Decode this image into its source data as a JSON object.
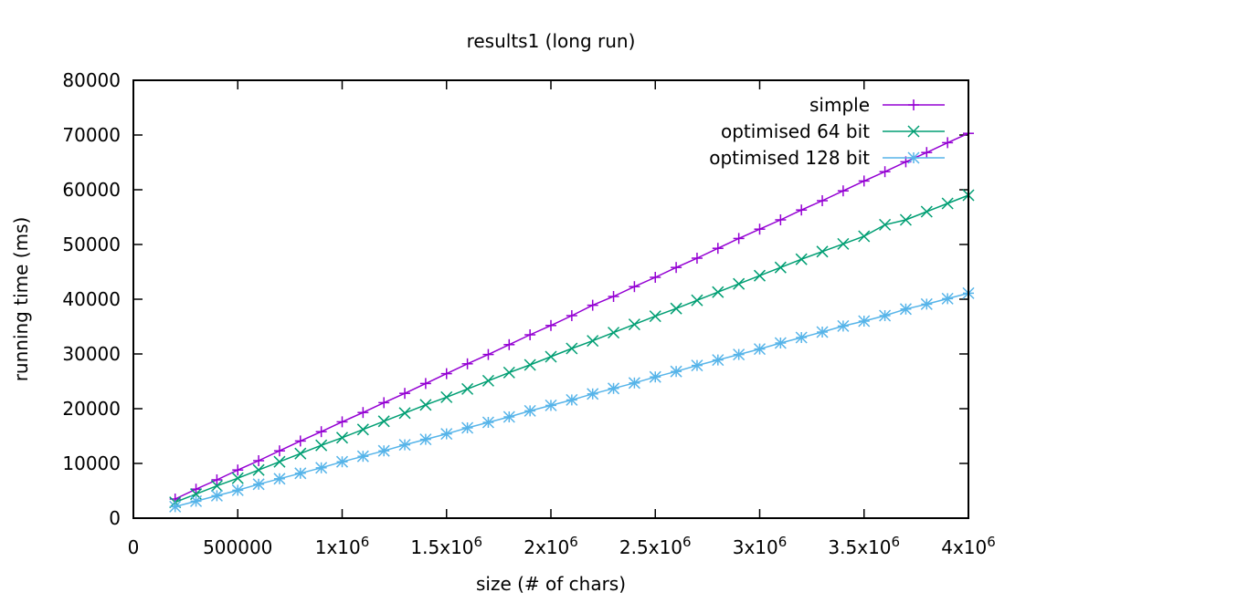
{
  "chart_data": {
    "type": "line",
    "title": "results1 (long run)",
    "xlabel": "size (# of chars)",
    "ylabel": "running time (ms)",
    "xlim": [
      0,
      4000000
    ],
    "ylim": [
      0,
      80000
    ],
    "grid": false,
    "legend_position": "top-right",
    "x_ticks": [
      {
        "value": 0,
        "label": "0"
      },
      {
        "value": 500000,
        "label": "500000"
      },
      {
        "value": 1000000,
        "label": "1x10",
        "exp": "6"
      },
      {
        "value": 1500000,
        "label": "1.5x10",
        "exp": "6"
      },
      {
        "value": 2000000,
        "label": "2x10",
        "exp": "6"
      },
      {
        "value": 2500000,
        "label": "2.5x10",
        "exp": "6"
      },
      {
        "value": 3000000,
        "label": "3x10",
        "exp": "6"
      },
      {
        "value": 3500000,
        "label": "3.5x10",
        "exp": "6"
      },
      {
        "value": 4000000,
        "label": "4x10",
        "exp": "6"
      }
    ],
    "y_ticks": [
      {
        "value": 0,
        "label": "0"
      },
      {
        "value": 10000,
        "label": "10000"
      },
      {
        "value": 20000,
        "label": "20000"
      },
      {
        "value": 30000,
        "label": "30000"
      },
      {
        "value": 40000,
        "label": "40000"
      },
      {
        "value": 50000,
        "label": "50000"
      },
      {
        "value": 60000,
        "label": "60000"
      },
      {
        "value": 70000,
        "label": "70000"
      },
      {
        "value": 80000,
        "label": "80000"
      }
    ],
    "x": [
      200000,
      300000,
      400000,
      500000,
      600000,
      700000,
      800000,
      900000,
      1000000,
      1100000,
      1200000,
      1300000,
      1400000,
      1500000,
      1600000,
      1700000,
      1800000,
      1900000,
      2000000,
      2100000,
      2200000,
      2300000,
      2400000,
      2500000,
      2600000,
      2700000,
      2800000,
      2900000,
      3000000,
      3100000,
      3200000,
      3300000,
      3400000,
      3500000,
      3600000,
      3700000,
      3800000,
      3900000,
      4000000
    ],
    "series": [
      {
        "name": "simple",
        "color": "#9400d3",
        "marker": "plus",
        "values": [
          3500,
          5300,
          7000,
          8800,
          10500,
          12300,
          14100,
          15800,
          17600,
          19300,
          21100,
          22800,
          24600,
          26400,
          28200,
          29900,
          31700,
          33500,
          35200,
          37000,
          38900,
          40500,
          42300,
          44000,
          45800,
          47500,
          49300,
          51100,
          52800,
          54500,
          56300,
          58000,
          59800,
          61600,
          63300,
          65100,
          66800,
          68600,
          70300
        ]
      },
      {
        "name": "optimised 64 bit",
        "color": "#009e73",
        "marker": "cross",
        "values": [
          2900,
          4400,
          5900,
          7300,
          8800,
          10300,
          11800,
          13300,
          14700,
          16200,
          17700,
          19200,
          20700,
          22100,
          23600,
          25100,
          26600,
          28000,
          29500,
          31000,
          32400,
          33900,
          35400,
          36900,
          38300,
          39800,
          41300,
          42800,
          44300,
          45800,
          47300,
          48700,
          50100,
          51500,
          53600,
          54500,
          56000,
          57500,
          59000
        ]
      },
      {
        "name": "optimised 128 bit",
        "color": "#56b4e9",
        "marker": "star",
        "values": [
          2100,
          3100,
          4100,
          5100,
          6200,
          7200,
          8200,
          9200,
          10300,
          11300,
          12300,
          13400,
          14400,
          15400,
          16500,
          17500,
          18500,
          19600,
          20600,
          21600,
          22700,
          23700,
          24700,
          25800,
          26800,
          27900,
          28900,
          29900,
          30900,
          32000,
          33000,
          34000,
          35100,
          36000,
          37000,
          38200,
          39100,
          40100,
          41100
        ]
      }
    ]
  }
}
